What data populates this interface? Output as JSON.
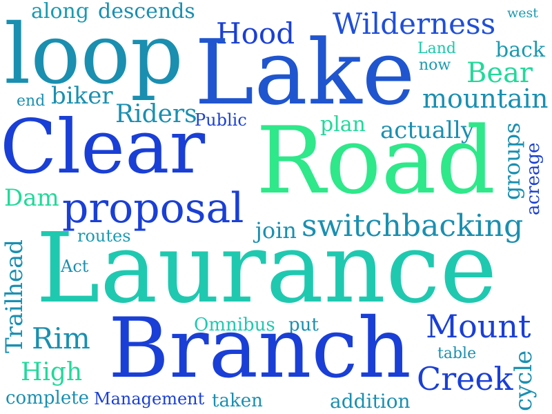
{
  "colors": {
    "blue": "#1a3fd6",
    "royal": "#1f4fd8",
    "teal": "#1a8fb0",
    "sea": "#1ab3a6",
    "mint": "#22d99a",
    "green": "#2ee88a",
    "aqua": "#1fc9b0"
  },
  "words": {
    "along": "along",
    "descends": "descends",
    "west": "west",
    "hood": "Hood",
    "wilderness": "Wilderness",
    "loop": "loop",
    "lake": "Lake",
    "land": "Land",
    "back": "back",
    "now": "now",
    "bear": "Bear",
    "end": "end",
    "biker": "biker",
    "mountain": "mountain",
    "riders": "Riders",
    "public": "Public",
    "plan": "plan",
    "actually": "actually",
    "clear": "Clear",
    "road": "Road",
    "groups": "groups",
    "acreage": "acreage",
    "dam": "Dam",
    "proposal": "proposal",
    "join": "join",
    "switchbacking": "switchbacking",
    "routes": "routes",
    "trailhead": "Trailhead",
    "laurance": "Laurance",
    "act": "Act",
    "omnibus": "Omnibus",
    "put": "put",
    "mount": "Mount",
    "rim": "Rim",
    "branch": "Branch",
    "table": "table",
    "high": "High",
    "creek": "Creek",
    "cycle": "cycle",
    "complete": "complete",
    "management": "Management",
    "taken": "taken",
    "addition": "addition"
  }
}
